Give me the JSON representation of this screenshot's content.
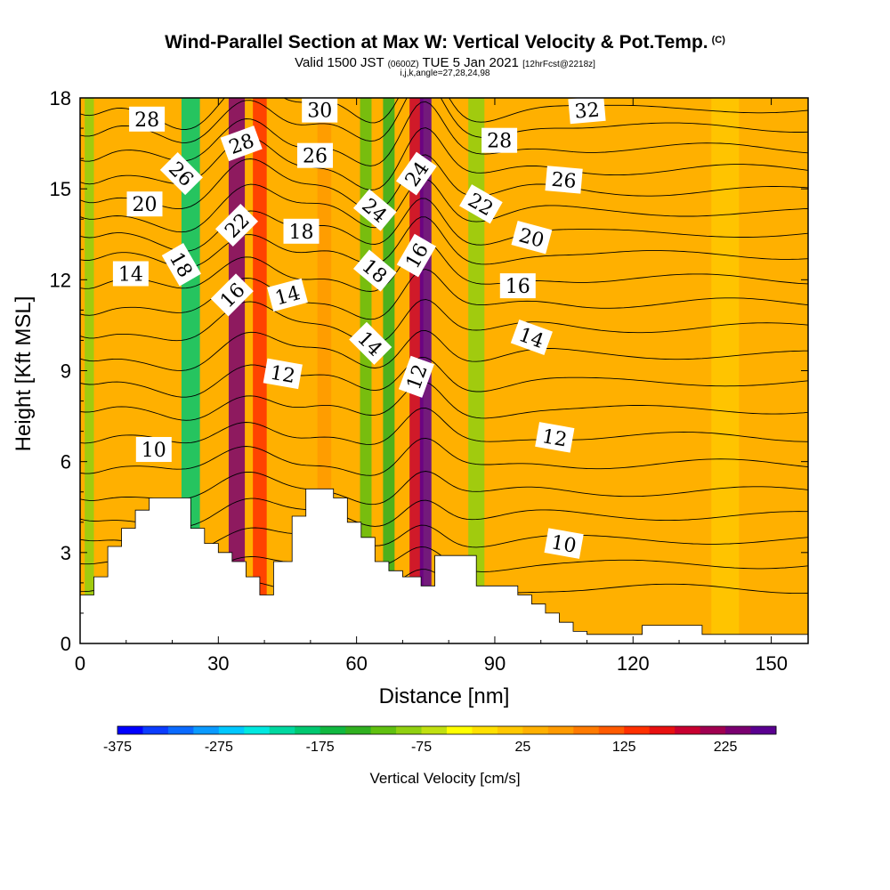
{
  "title": "Wind-Parallel Section at Max W: Vertical Velocity & Pot.Temp.",
  "copyright": "(C)",
  "subtitle_main_a": "Valid 1500 JST",
  "subtitle_small_a": "(0600Z)",
  "subtitle_main_b": "TUE 5 Jan 2021",
  "subtitle_small_b": "[12hrFcst@2218z]",
  "subtitle2": "i,j,k,angle=27,28,24,98",
  "chart_data": {
    "type": "heatmap",
    "xlabel": "Distance [nm]",
    "ylabel": "Height [Kft MSL]",
    "xlim": [
      0,
      158
    ],
    "ylim": [
      0,
      18
    ],
    "x_ticks": [
      0,
      30,
      60,
      90,
      120,
      150
    ],
    "y_ticks": [
      0,
      3,
      6,
      9,
      12,
      15,
      18
    ],
    "colorbar": {
      "title": "Vertical Velocity [cm/s]",
      "min": -375,
      "max": 275,
      "step": 25,
      "tick_labels": [
        "-375",
        "-275",
        "-175",
        "-75",
        "25",
        "125",
        "225"
      ],
      "colors": [
        "#0000ff",
        "#0b3cff",
        "#0a6aff",
        "#0a9aff",
        "#00c8ff",
        "#00e8e0",
        "#00d8a0",
        "#00c870",
        "#10b840",
        "#30b020",
        "#60c010",
        "#90d010",
        "#c0e010",
        "#ffff00",
        "#ffe000",
        "#ffc800",
        "#ffb000",
        "#ff9a00",
        "#ff7a00",
        "#ff5a00",
        "#ff3000",
        "#e81010",
        "#c80030",
        "#a00050",
        "#7a0070",
        "#5a0090"
      ]
    },
    "velocity_bands": [
      {
        "x": 2,
        "width": 2,
        "value": -90
      },
      {
        "x": 24,
        "width": 4,
        "value": -190
      },
      {
        "x": 34,
        "width": 3.5,
        "value": 240
      },
      {
        "x": 39,
        "width": 3,
        "value": 130
      },
      {
        "x": 53,
        "width": 3,
        "value": 60
      },
      {
        "x": 62,
        "width": 2.5,
        "value": -110
      },
      {
        "x": 67,
        "width": 2.5,
        "value": -130
      },
      {
        "x": 73,
        "width": 3,
        "value": 190
      },
      {
        "x": 75,
        "width": 2.5,
        "value": 280
      },
      {
        "x": 86,
        "width": 3.5,
        "value": -80
      },
      {
        "x": 100,
        "width": 4,
        "value": 40
      },
      {
        "x": 140,
        "width": 6,
        "value": 20
      }
    ],
    "terrain": [
      [
        0,
        1.6
      ],
      [
        3,
        1.6
      ],
      [
        3,
        2.2
      ],
      [
        6,
        2.2
      ],
      [
        6,
        3.2
      ],
      [
        9,
        3.2
      ],
      [
        9,
        3.8
      ],
      [
        12,
        3.8
      ],
      [
        12,
        4.4
      ],
      [
        15,
        4.4
      ],
      [
        15,
        4.8
      ],
      [
        24,
        4.8
      ],
      [
        24,
        3.8
      ],
      [
        27,
        3.8
      ],
      [
        27,
        3.3
      ],
      [
        30,
        3.3
      ],
      [
        30,
        3
      ],
      [
        33,
        3
      ],
      [
        33,
        2.7
      ],
      [
        36,
        2.7
      ],
      [
        36,
        2.2
      ],
      [
        39,
        2.2
      ],
      [
        39,
        1.6
      ],
      [
        42,
        1.6
      ],
      [
        42,
        2.7
      ],
      [
        46,
        2.7
      ],
      [
        46,
        4.2
      ],
      [
        49,
        4.2
      ],
      [
        49,
        5.1
      ],
      [
        55,
        5.1
      ],
      [
        55,
        4.8
      ],
      [
        58,
        4.8
      ],
      [
        58,
        4
      ],
      [
        61,
        4
      ],
      [
        61,
        3.5
      ],
      [
        64,
        3.5
      ],
      [
        64,
        2.7
      ],
      [
        67,
        2.7
      ],
      [
        67,
        2.4
      ],
      [
        70,
        2.4
      ],
      [
        70,
        2.2
      ],
      [
        74,
        2.2
      ],
      [
        74,
        1.9
      ],
      [
        77,
        1.9
      ],
      [
        77,
        2.9
      ],
      [
        86,
        2.9
      ],
      [
        86,
        1.9
      ],
      [
        95,
        1.9
      ],
      [
        95,
        1.6
      ],
      [
        98,
        1.6
      ],
      [
        98,
        1.3
      ],
      [
        101,
        1.3
      ],
      [
        101,
        1.0
      ],
      [
        104,
        1.0
      ],
      [
        104,
        0.7
      ],
      [
        107,
        0.7
      ],
      [
        107,
        0.4
      ],
      [
        110,
        0.4
      ],
      [
        110,
        0.3
      ],
      [
        122,
        0.3
      ],
      [
        122,
        0.6
      ],
      [
        135,
        0.6
      ],
      [
        135,
        0.3
      ],
      [
        158,
        0.3
      ]
    ],
    "isentropes": [
      {
        "base": 1.8,
        "label": ""
      },
      {
        "base": 2.6,
        "label": ""
      },
      {
        "base": 3.4,
        "label": "10"
      },
      {
        "base": 4.2,
        "label": ""
      },
      {
        "base": 5.0,
        "label": ""
      },
      {
        "base": 5.9,
        "label": ""
      },
      {
        "base": 6.8,
        "label": "12"
      },
      {
        "base": 7.7,
        "label": ""
      },
      {
        "base": 8.6,
        "label": ""
      },
      {
        "base": 9.5,
        "label": "14"
      },
      {
        "base": 10.4,
        "label": ""
      },
      {
        "base": 11.2,
        "label": "16"
      },
      {
        "base": 12.0,
        "label": ""
      },
      {
        "base": 12.8,
        "label": "20"
      },
      {
        "base": 13.5,
        "label": ""
      },
      {
        "base": 14.2,
        "label": "26"
      },
      {
        "base": 14.9,
        "label": ""
      },
      {
        "base": 15.6,
        "label": "28"
      },
      {
        "base": 16.3,
        "label": ""
      },
      {
        "base": 17.0,
        "label": "32"
      },
      {
        "base": 17.6,
        "label": ""
      }
    ],
    "contour_labels": [
      {
        "text": "28",
        "x": 14.5,
        "y": 17.3,
        "rot": 0
      },
      {
        "text": "20",
        "x": 14,
        "y": 14.5,
        "rot": 0
      },
      {
        "text": "14",
        "x": 11,
        "y": 12.2,
        "rot": 0
      },
      {
        "text": "26",
        "x": 22,
        "y": 15.5,
        "rot": 45
      },
      {
        "text": "18",
        "x": 22,
        "y": 12.5,
        "rot": 60
      },
      {
        "text": "10",
        "x": 16,
        "y": 6.4,
        "rot": 0
      },
      {
        "text": "28",
        "x": 35,
        "y": 16.5,
        "rot": -20
      },
      {
        "text": "22",
        "x": 34,
        "y": 13.8,
        "rot": -45
      },
      {
        "text": "16",
        "x": 33,
        "y": 11.5,
        "rot": -45
      },
      {
        "text": "30",
        "x": 52,
        "y": 17.6,
        "rot": 0
      },
      {
        "text": "26",
        "x": 51,
        "y": 16.1,
        "rot": 0
      },
      {
        "text": "18",
        "x": 48,
        "y": 13.6,
        "rot": 0
      },
      {
        "text": "14",
        "x": 45,
        "y": 11.5,
        "rot": -15
      },
      {
        "text": "12",
        "x": 44,
        "y": 8.9,
        "rot": 10
      },
      {
        "text": "24",
        "x": 64,
        "y": 14.3,
        "rot": 40
      },
      {
        "text": "18",
        "x": 64,
        "y": 12.3,
        "rot": 40
      },
      {
        "text": "14",
        "x": 63,
        "y": 9.9,
        "rot": 45
      },
      {
        "text": "24",
        "x": 73,
        "y": 15.5,
        "rot": -55
      },
      {
        "text": "16",
        "x": 73,
        "y": 12.8,
        "rot": -60
      },
      {
        "text": "12",
        "x": 73,
        "y": 8.8,
        "rot": -70
      },
      {
        "text": "28",
        "x": 91,
        "y": 16.6,
        "rot": 0
      },
      {
        "text": "22",
        "x": 87,
        "y": 14.5,
        "rot": 30
      },
      {
        "text": "20",
        "x": 98,
        "y": 13.4,
        "rot": 15
      },
      {
        "text": "16",
        "x": 95,
        "y": 11.8,
        "rot": 0
      },
      {
        "text": "14",
        "x": 98,
        "y": 10.1,
        "rot": 20
      },
      {
        "text": "12",
        "x": 103,
        "y": 6.8,
        "rot": 10
      },
      {
        "text": "10",
        "x": 105,
        "y": 3.3,
        "rot": 10
      },
      {
        "text": "32",
        "x": 110,
        "y": 17.6,
        "rot": -5
      },
      {
        "text": "26",
        "x": 105,
        "y": 15.3,
        "rot": 5
      }
    ]
  }
}
